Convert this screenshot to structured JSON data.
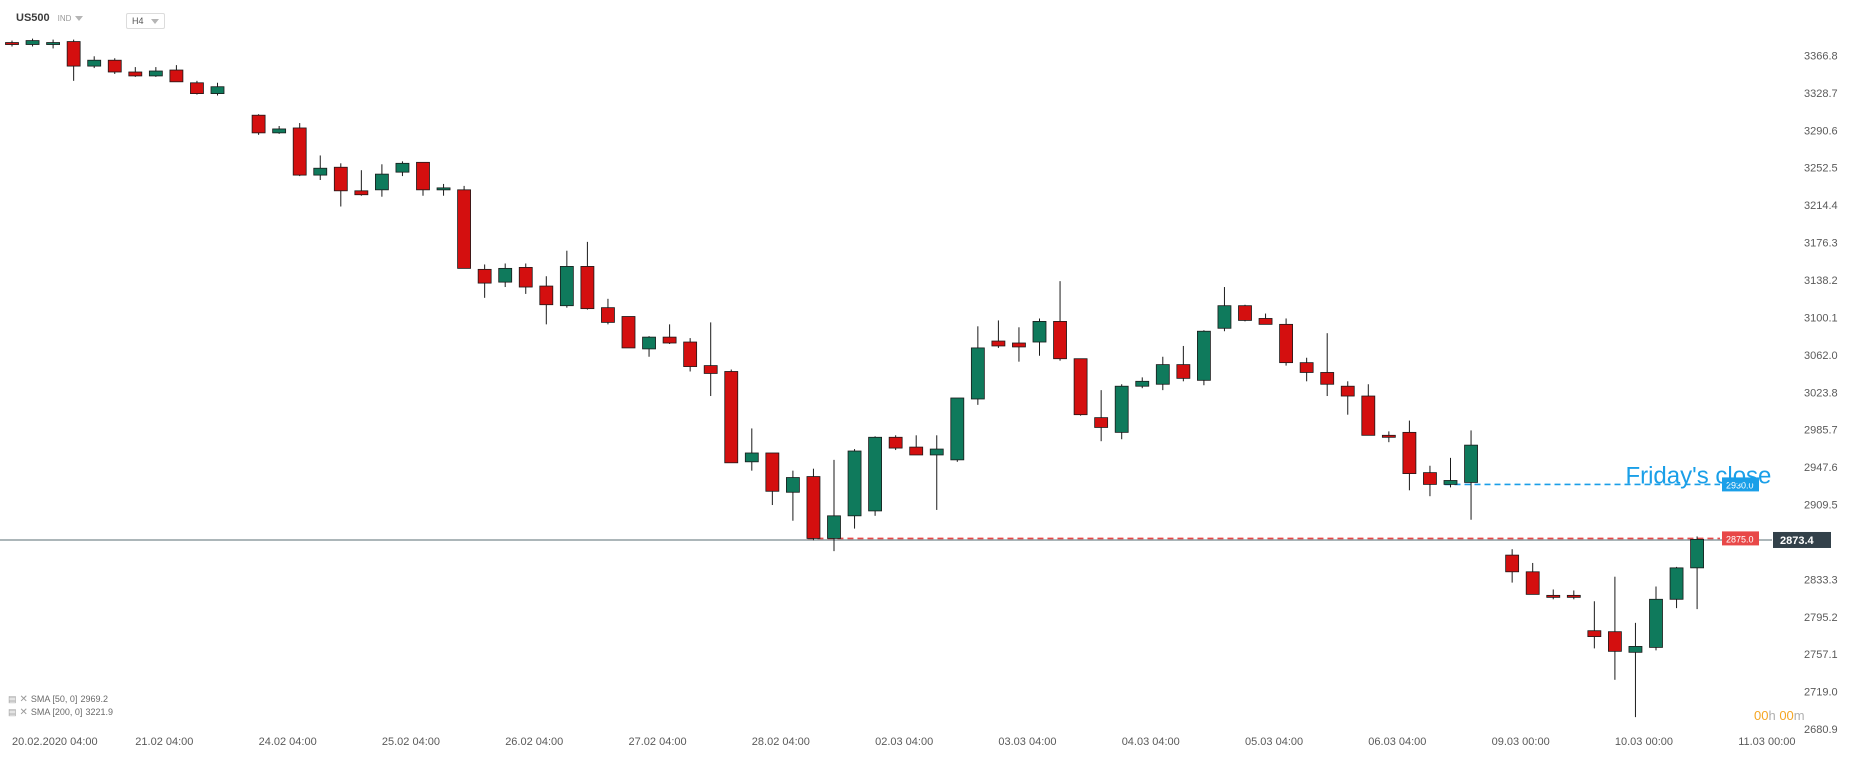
{
  "header": {
    "symbol": "US500",
    "instrument_type": "IND",
    "timeframe": "H4"
  },
  "indicators": [
    {
      "label": "SMA [50, 0]",
      "value": "2969.2"
    },
    {
      "label": "SMA [200, 0]",
      "value": "3221.9"
    }
  ],
  "countdown": {
    "hours": "00",
    "h_unit": "h",
    "minutes": "00",
    "m_unit": "m"
  },
  "colors": {
    "up": "#0f7a5c",
    "down": "#d40f0f",
    "friday_line": "#1a9fe8",
    "level_line": "#e84848",
    "price_tag": "#33414a",
    "axis_text": "#5a5a5a"
  },
  "chart_data": {
    "type": "candlestick",
    "symbol": "US500",
    "timeframe": "H4",
    "y_axis": {
      "ticks": [
        "3366.8",
        "3328.7",
        "3290.6",
        "3252.5",
        "3214.4",
        "3176.3",
        "3138.2",
        "3100.1",
        "3062.0",
        "3023.8",
        "2985.7",
        "2947.6",
        "2909.5",
        "2833.3",
        "2795.2",
        "2757.1",
        "2719.0",
        "2680.9"
      ],
      "range": [
        2677,
        3384
      ]
    },
    "x_axis": {
      "labels": [
        "20.02.2020  04:00",
        "21.02  04:00",
        "24.02  04:00",
        "25.02  04:00",
        "26.02  04:00",
        "27.02  04:00",
        "28.02  04:00",
        "02.03  04:00",
        "03.03  04:00",
        "04.03  04:00",
        "05.03  04:00",
        "06.03  04:00",
        "09.03  00:00",
        "10.03  00:00",
        "11.03  00:00"
      ],
      "label_slots": [
        0,
        6,
        12,
        18,
        24,
        30,
        36,
        42,
        48,
        54,
        60,
        66,
        72,
        78,
        84
      ]
    },
    "candles": [
      {
        "o": 3380,
        "h": 3382,
        "l": 3376,
        "c": 3378
      },
      {
        "o": 3378,
        "h": 3384,
        "l": 3376,
        "c": 3382
      },
      {
        "o": 3378,
        "h": 3383,
        "l": 3374,
        "c": 3380
      },
      {
        "o": 3381,
        "h": 3383,
        "l": 3341,
        "c": 3356
      },
      {
        "o": 3356,
        "h": 3366,
        "l": 3354,
        "c": 3362
      },
      {
        "o": 3362,
        "h": 3364,
        "l": 3348,
        "c": 3350
      },
      {
        "o": 3350,
        "h": 3355,
        "l": 3345,
        "c": 3346
      },
      {
        "o": 3346,
        "h": 3355,
        "l": 3345,
        "c": 3351
      },
      {
        "o": 3352,
        "h": 3357,
        "l": 3340,
        "c": 3340
      },
      {
        "o": 3339,
        "h": 3341,
        "l": 3327,
        "c": 3328
      },
      {
        "o": 3328,
        "h": 3339,
        "l": 3326,
        "c": 3335
      },
      null,
      {
        "o": 3306,
        "h": 3307,
        "l": 3286,
        "c": 3288
      },
      {
        "o": 3288,
        "h": 3295,
        "l": 3287,
        "c": 3292
      },
      {
        "o": 3293,
        "h": 3298,
        "l": 3244,
        "c": 3245
      },
      {
        "o": 3245,
        "h": 3265,
        "l": 3240,
        "c": 3252
      },
      {
        "o": 3253,
        "h": 3257,
        "l": 3213,
        "c": 3229
      },
      {
        "o": 3229,
        "h": 3250,
        "l": 3224,
        "c": 3225
      },
      {
        "o": 3230,
        "h": 3256,
        "l": 3223,
        "c": 3246
      },
      {
        "o": 3248,
        "h": 3259,
        "l": 3244,
        "c": 3257
      },
      {
        "o": 3258,
        "h": 3258,
        "l": 3224,
        "c": 3230
      },
      {
        "o": 3231,
        "h": 3236,
        "l": 3224,
        "c": 3232
      },
      {
        "o": 3230,
        "h": 3234,
        "l": 3150,
        "c": 3150
      },
      {
        "o": 3149,
        "h": 3154,
        "l": 3120,
        "c": 3135
      },
      {
        "o": 3136,
        "h": 3155,
        "l": 3131,
        "c": 3150
      },
      {
        "o": 3151,
        "h": 3155,
        "l": 3124,
        "c": 3131
      },
      {
        "o": 3132,
        "h": 3142,
        "l": 3093,
        "c": 3113
      },
      {
        "o": 3112,
        "h": 3168,
        "l": 3110,
        "c": 3152
      },
      {
        "o": 3152,
        "h": 3177,
        "l": 3108,
        "c": 3109
      },
      {
        "o": 3110,
        "h": 3119,
        "l": 3093,
        "c": 3095
      },
      {
        "o": 3101,
        "h": 3101,
        "l": 3069,
        "c": 3069
      },
      {
        "o": 3068,
        "h": 3081,
        "l": 3060,
        "c": 3080
      },
      {
        "o": 3080,
        "h": 3093,
        "l": 3073,
        "c": 3074
      },
      {
        "o": 3075,
        "h": 3079,
        "l": 3045,
        "c": 3050
      },
      {
        "o": 3051,
        "h": 3095,
        "l": 3020,
        "c": 3043
      },
      {
        "o": 3045,
        "h": 3047,
        "l": 2952,
        "c": 2952
      },
      {
        "o": 2953,
        "h": 2987,
        "l": 2944,
        "c": 2962
      },
      {
        "o": 2962,
        "h": 2962,
        "l": 2909,
        "c": 2923
      },
      {
        "o": 2922,
        "h": 2944,
        "l": 2893,
        "c": 2937
      },
      {
        "o": 2938,
        "h": 2946,
        "l": 2873,
        "c": 2875
      },
      {
        "o": 2875,
        "h": 2955,
        "l": 2862,
        "c": 2898
      },
      {
        "o": 2898,
        "h": 2966,
        "l": 2885,
        "c": 2964
      },
      {
        "o": 2903,
        "h": 2979,
        "l": 2898,
        "c": 2978
      },
      {
        "o": 2978,
        "h": 2980,
        "l": 2965,
        "c": 2967
      },
      {
        "o": 2968,
        "h": 2980,
        "l": 2962,
        "c": 2960
      },
      {
        "o": 2960,
        "h": 2980,
        "l": 2904,
        "c": 2966
      },
      {
        "o": 2955,
        "h": 3016,
        "l": 2953,
        "c": 3018
      },
      {
        "o": 3017,
        "h": 3091,
        "l": 3011,
        "c": 3069
      },
      {
        "o": 3076,
        "h": 3097,
        "l": 3069,
        "c": 3071
      },
      {
        "o": 3074,
        "h": 3090,
        "l": 3055,
        "c": 3070
      },
      {
        "o": 3075,
        "h": 3099,
        "l": 3061,
        "c": 3096
      },
      {
        "o": 3096,
        "h": 3137,
        "l": 3056,
        "c": 3058
      },
      {
        "o": 3058,
        "h": 3058,
        "l": 3000,
        "c": 3001
      },
      {
        "o": 2998,
        "h": 3026,
        "l": 2974,
        "c": 2988
      },
      {
        "o": 2983,
        "h": 3032,
        "l": 2976,
        "c": 3030
      },
      {
        "o": 3030,
        "h": 3039,
        "l": 3028,
        "c": 3035
      },
      {
        "o": 3032,
        "h": 3060,
        "l": 3026,
        "c": 3052
      },
      {
        "o": 3052,
        "h": 3071,
        "l": 3035,
        "c": 3038
      },
      {
        "o": 3036,
        "h": 3087,
        "l": 3031,
        "c": 3086
      },
      {
        "o": 3089,
        "h": 3131,
        "l": 3086,
        "c": 3112
      },
      {
        "o": 3112,
        "h": 3113,
        "l": 3096,
        "c": 3097
      },
      {
        "o": 3099,
        "h": 3104,
        "l": 3094,
        "c": 3093
      },
      {
        "o": 3093,
        "h": 3099,
        "l": 3051,
        "c": 3054
      },
      {
        "o": 3054,
        "h": 3059,
        "l": 3035,
        "c": 3044
      },
      {
        "o": 3044,
        "h": 3084,
        "l": 3020,
        "c": 3032
      },
      {
        "o": 3030,
        "h": 3035,
        "l": 3001,
        "c": 3020
      },
      {
        "o": 3020,
        "h": 3032,
        "l": 2983,
        "c": 2980
      },
      {
        "o": 2980,
        "h": 2984,
        "l": 2973,
        "c": 2978
      },
      {
        "o": 2983,
        "h": 2995,
        "l": 2924,
        "c": 2941
      },
      {
        "o": 2942,
        "h": 2949,
        "l": 2918,
        "c": 2930
      },
      {
        "o": 2930,
        "h": 2957,
        "l": 2927,
        "c": 2934
      },
      {
        "o": 2932,
        "h": 2985,
        "l": 2894,
        "c": 2970
      },
      null,
      {
        "o": 2858,
        "h": 2864,
        "l": 2830,
        "c": 2841
      },
      {
        "o": 2841,
        "h": 2850,
        "l": 2818,
        "c": 2818
      },
      {
        "o": 2817,
        "h": 2823,
        "l": 2813,
        "c": 2815
      },
      {
        "o": 2817,
        "h": 2822,
        "l": 2813,
        "c": 2815
      },
      {
        "o": 2781,
        "h": 2811,
        "l": 2763,
        "c": 2775
      },
      {
        "o": 2780,
        "h": 2836,
        "l": 2731,
        "c": 2760
      },
      {
        "o": 2759,
        "h": 2789,
        "l": 2693,
        "c": 2765
      },
      {
        "o": 2764,
        "h": 2826,
        "l": 2761,
        "c": 2813
      },
      {
        "o": 2813,
        "h": 2846,
        "l": 2804,
        "c": 2845
      },
      {
        "o": 2845,
        "h": 2877,
        "l": 2803,
        "c": 2874
      }
    ],
    "horizontal_lines": [
      {
        "name": "last-price",
        "value": 2873.4,
        "label": "2873.4",
        "style": "solid"
      },
      {
        "name": "level-2875",
        "value": 2875.0,
        "label": "2875.0",
        "style": "dashed",
        "from_slot": 39
      },
      {
        "name": "fridays-close",
        "value": 2930.0,
        "label": "2930.0",
        "style": "dashed",
        "from_slot": 70
      }
    ],
    "annotations": [
      {
        "text": "Friday's close",
        "near_value": 2945,
        "near_slot": 79,
        "color": "#1a9fe8"
      }
    ]
  }
}
